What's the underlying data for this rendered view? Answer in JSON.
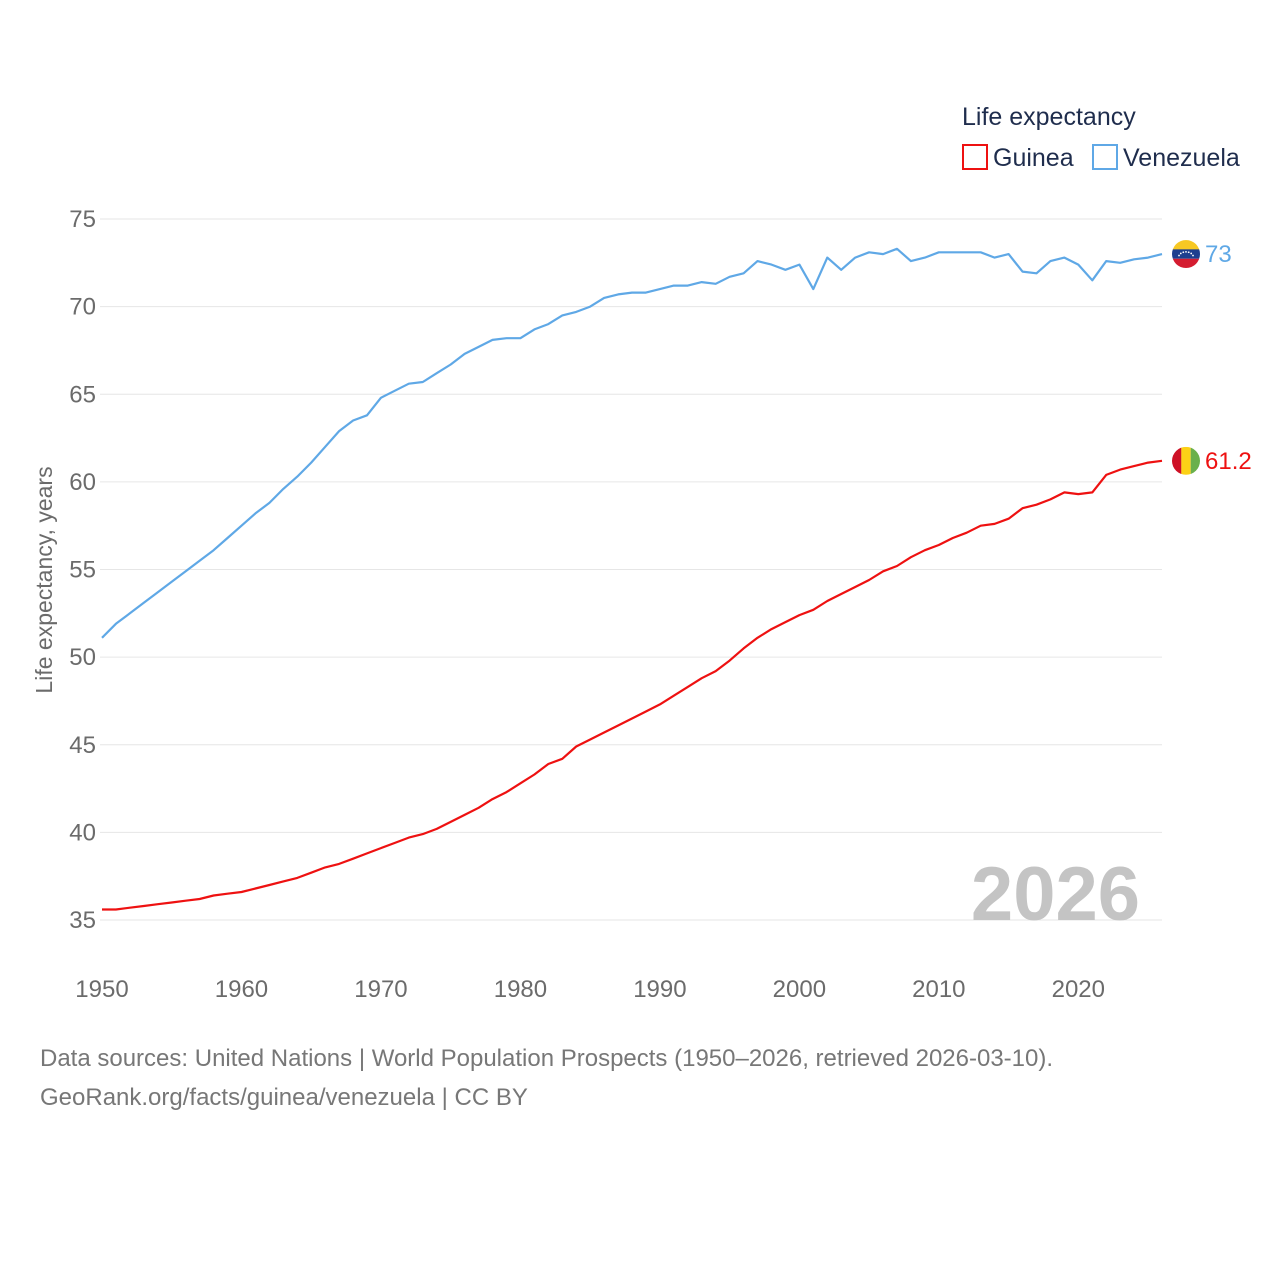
{
  "colors": {
    "guinea": "#ee1111",
    "venezuela": "#5fa8e6",
    "grid": "#e6e6e6",
    "year_stamp": "#c4c4c4"
  },
  "legend": {
    "title": "Life expectancy",
    "items": [
      "Guinea",
      "Venezuela"
    ]
  },
  "year_stamp": "2026",
  "footer": {
    "line1": "Data sources: United Nations | World Population Prospects (1950–2026, retrieved 2026-03-10).",
    "line2": "GeoRank.org/facts/guinea/venezuela | CC BY"
  },
  "chart_data": {
    "type": "line",
    "title": "",
    "xlabel": "",
    "ylabel": "Life expectancy, years",
    "xlim": [
      1950,
      2026
    ],
    "ylim": [
      33,
      76
    ],
    "xticks": [
      1950,
      1960,
      1970,
      1980,
      1990,
      2000,
      2010,
      2020
    ],
    "yticks": [
      35,
      40,
      45,
      50,
      55,
      60,
      65,
      70,
      75
    ],
    "legend_position": "top-right",
    "x": [
      1950,
      1951,
      1952,
      1953,
      1954,
      1955,
      1956,
      1957,
      1958,
      1959,
      1960,
      1961,
      1962,
      1963,
      1964,
      1965,
      1966,
      1967,
      1968,
      1969,
      1970,
      1971,
      1972,
      1973,
      1974,
      1975,
      1976,
      1977,
      1978,
      1979,
      1980,
      1981,
      1982,
      1983,
      1984,
      1985,
      1986,
      1987,
      1988,
      1989,
      1990,
      1991,
      1992,
      1993,
      1994,
      1995,
      1996,
      1997,
      1998,
      1999,
      2000,
      2001,
      2002,
      2003,
      2004,
      2005,
      2006,
      2007,
      2008,
      2009,
      2010,
      2011,
      2012,
      2013,
      2014,
      2015,
      2016,
      2017,
      2018,
      2019,
      2020,
      2021,
      2022,
      2023,
      2024,
      2025,
      2026
    ],
    "series": [
      {
        "name": "Guinea",
        "end_label": "61.2",
        "values": [
          35.6,
          35.6,
          35.7,
          35.8,
          35.9,
          36.0,
          36.1,
          36.2,
          36.4,
          36.5,
          36.6,
          36.8,
          37.0,
          37.2,
          37.4,
          37.7,
          38.0,
          38.2,
          38.5,
          38.8,
          39.1,
          39.4,
          39.7,
          39.9,
          40.2,
          40.6,
          41.0,
          41.4,
          41.9,
          42.3,
          42.8,
          43.3,
          43.9,
          44.2,
          44.9,
          45.3,
          45.7,
          46.1,
          46.5,
          46.9,
          47.3,
          47.8,
          48.3,
          48.8,
          49.2,
          49.8,
          50.5,
          51.1,
          51.6,
          52.0,
          52.4,
          52.7,
          53.2,
          53.6,
          54.0,
          54.4,
          54.9,
          55.2,
          55.7,
          56.1,
          56.4,
          56.8,
          57.1,
          57.5,
          57.6,
          57.9,
          58.5,
          58.7,
          59.0,
          59.4,
          59.3,
          59.4,
          60.4,
          60.7,
          60.9,
          61.1,
          61.2
        ]
      },
      {
        "name": "Venezuela",
        "end_label": "73",
        "values": [
          51.1,
          51.9,
          52.5,
          53.1,
          53.7,
          54.3,
          54.9,
          55.5,
          56.1,
          56.8,
          57.5,
          58.2,
          58.8,
          59.6,
          60.3,
          61.1,
          62.0,
          62.9,
          63.5,
          63.8,
          64.8,
          65.2,
          65.6,
          65.7,
          66.2,
          66.7,
          67.3,
          67.7,
          68.1,
          68.2,
          68.2,
          68.7,
          69.0,
          69.5,
          69.7,
          70.0,
          70.5,
          70.7,
          70.8,
          70.8,
          71.0,
          71.2,
          71.2,
          71.4,
          71.3,
          71.7,
          71.9,
          72.6,
          72.4,
          72.1,
          72.4,
          71.0,
          72.8,
          72.1,
          72.8,
          73.1,
          73.0,
          73.3,
          72.6,
          72.8,
          73.1,
          73.1,
          73.1,
          73.1,
          72.8,
          73.0,
          72.0,
          71.9,
          72.6,
          72.8,
          72.4,
          71.5,
          72.6,
          72.5,
          72.7,
          72.8,
          73.0
        ]
      }
    ]
  }
}
